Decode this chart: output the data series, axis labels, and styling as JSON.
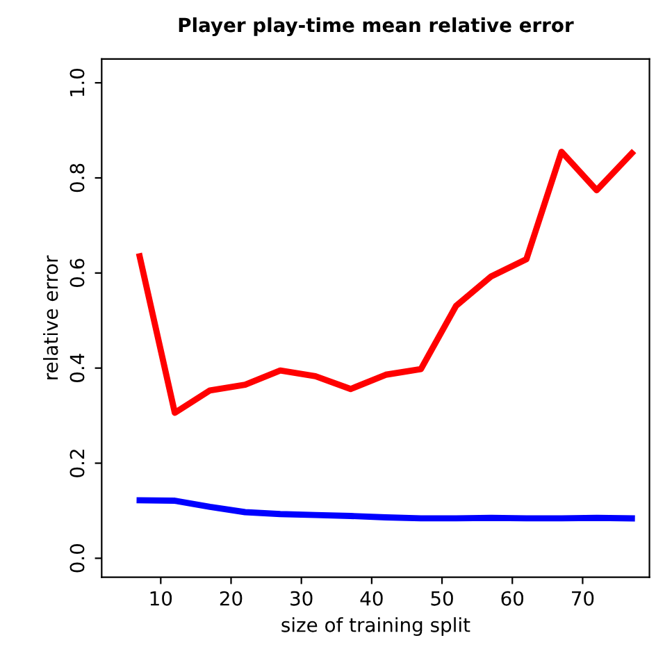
{
  "chart_data": {
    "type": "line",
    "title": "Player play-time mean relative error",
    "xlabel": "size of training split",
    "ylabel": "relative error",
    "x": [
      7,
      12,
      17,
      22,
      27,
      32,
      37,
      42,
      47,
      52,
      57,
      62,
      67,
      72,
      77
    ],
    "series": [
      {
        "color": "#ff0000",
        "values": [
          0.635,
          0.306,
          0.353,
          0.365,
          0.395,
          0.383,
          0.356,
          0.386,
          0.398,
          0.531,
          0.593,
          0.629,
          0.855,
          0.774,
          0.852
        ]
      },
      {
        "color": "#0000ff",
        "values": [
          0.122,
          0.121,
          0.108,
          0.097,
          0.093,
          0.091,
          0.089,
          0.086,
          0.084,
          0.084,
          0.085,
          0.084,
          0.084,
          0.085,
          0.084
        ]
      }
    ],
    "xlim": [
      1.6,
      79.5
    ],
    "ylim": [
      -0.04,
      1.05
    ],
    "xticks": [
      10,
      20,
      30,
      40,
      50,
      60,
      70
    ],
    "yticks": [
      {
        "value": 0,
        "label": "0.0"
      },
      0.2,
      0.4,
      0.6,
      0.8,
      {
        "value": 1,
        "label": "1.0"
      }
    ],
    "grid": false,
    "legend": false,
    "marker": "none",
    "line_style": "solid"
  }
}
